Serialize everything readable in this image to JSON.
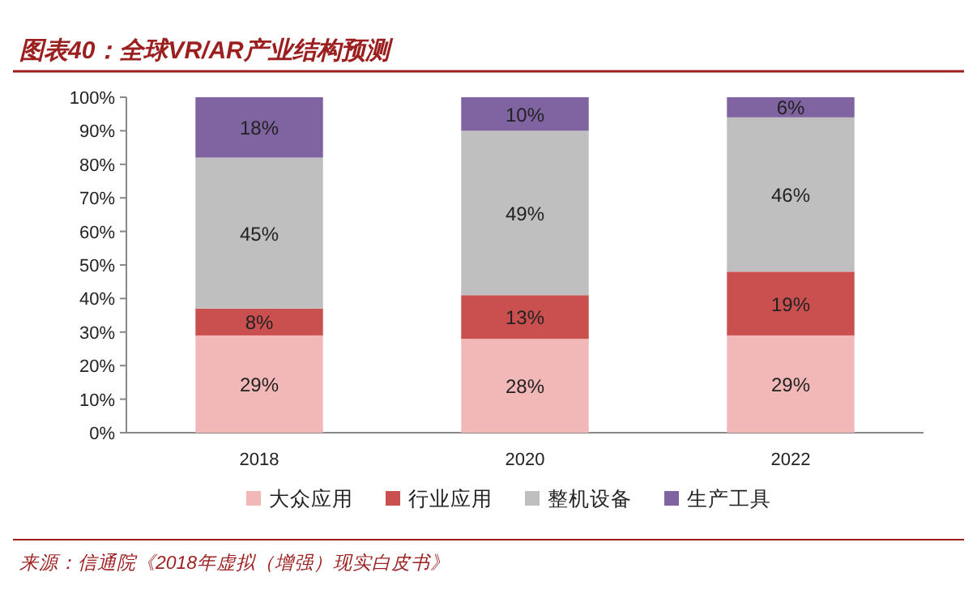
{
  "chart_data": {
    "type": "bar",
    "stacked": true,
    "title": "图表40：全球VR/AR产业结构预测",
    "categories": [
      "2018",
      "2020",
      "2022"
    ],
    "series": [
      {
        "name": "大众应用",
        "color": "#f2b8b7",
        "values": [
          29,
          28,
          29
        ],
        "value_labels": [
          "29%",
          "28%",
          "29%"
        ]
      },
      {
        "name": "行业应用",
        "color": "#c9504f",
        "values": [
          8,
          13,
          19
        ],
        "value_labels": [
          "8%",
          "13%",
          "19%"
        ]
      },
      {
        "name": "整机设备",
        "color": "#bfbfbf",
        "values": [
          45,
          49,
          46
        ],
        "value_labels": [
          "45%",
          "49%",
          "46%"
        ]
      },
      {
        "name": "生产工具",
        "color": "#8064a2",
        "values": [
          18,
          10,
          6
        ],
        "value_labels": [
          "18%",
          "10%",
          "6%"
        ]
      }
    ],
    "ylim": [
      0,
      100
    ],
    "yticks": [
      {
        "value": 0,
        "label": "0%"
      },
      {
        "value": 10,
        "label": "10%"
      },
      {
        "value": 20,
        "label": "20%"
      },
      {
        "value": 30,
        "label": "30%"
      },
      {
        "value": 40,
        "label": "40%"
      },
      {
        "value": 50,
        "label": "50%"
      },
      {
        "value": 60,
        "label": "60%"
      },
      {
        "value": 70,
        "label": "70%"
      },
      {
        "value": 80,
        "label": "80%"
      },
      {
        "value": 90,
        "label": "90%"
      },
      {
        "value": 100,
        "label": "100%"
      }
    ],
    "legend": "bottom",
    "annotations": [
      "来源：信通院《2018年虚拟（增强）现实白皮书》"
    ]
  }
}
